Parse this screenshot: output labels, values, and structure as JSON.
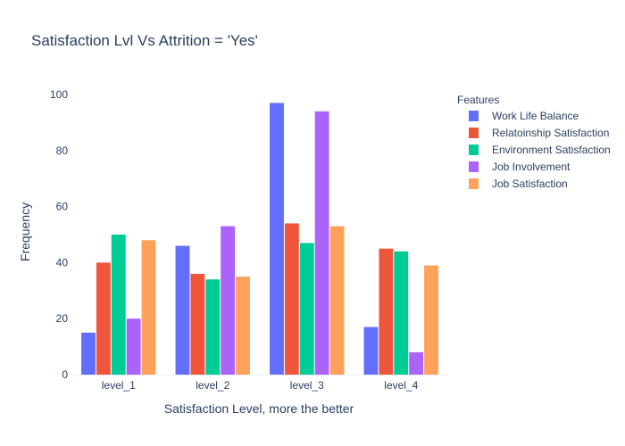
{
  "chart_data": {
    "type": "bar",
    "title": "Satisfaction Lvl Vs Attrition = 'Yes'",
    "xlabel": "Satisfaction Level, more the better",
    "ylabel": "Frequency",
    "categories": [
      "level_1",
      "level_2",
      "level_3",
      "level_4"
    ],
    "ylim": [
      0,
      100
    ],
    "yticks": [
      0,
      20,
      40,
      60,
      80,
      100
    ],
    "grid": false,
    "legend": {
      "title": "Features",
      "position": "right"
    },
    "series": [
      {
        "name": "Work Life Balance",
        "color": "#636efa",
        "values": [
          15,
          46,
          97,
          17
        ]
      },
      {
        "name": "Relatoinship Satisfaction",
        "color": "#ef553b",
        "values": [
          40,
          36,
          54,
          45
        ]
      },
      {
        "name": "Environment Satisfaction",
        "color": "#00cc96",
        "values": [
          50,
          34,
          47,
          44
        ]
      },
      {
        "name": "Job Involvement",
        "color": "#ab63fa",
        "values": [
          20,
          53,
          94,
          8
        ]
      },
      {
        "name": "Job Satisfaction",
        "color": "#ffa15a",
        "values": [
          48,
          35,
          53,
          39
        ]
      }
    ]
  }
}
